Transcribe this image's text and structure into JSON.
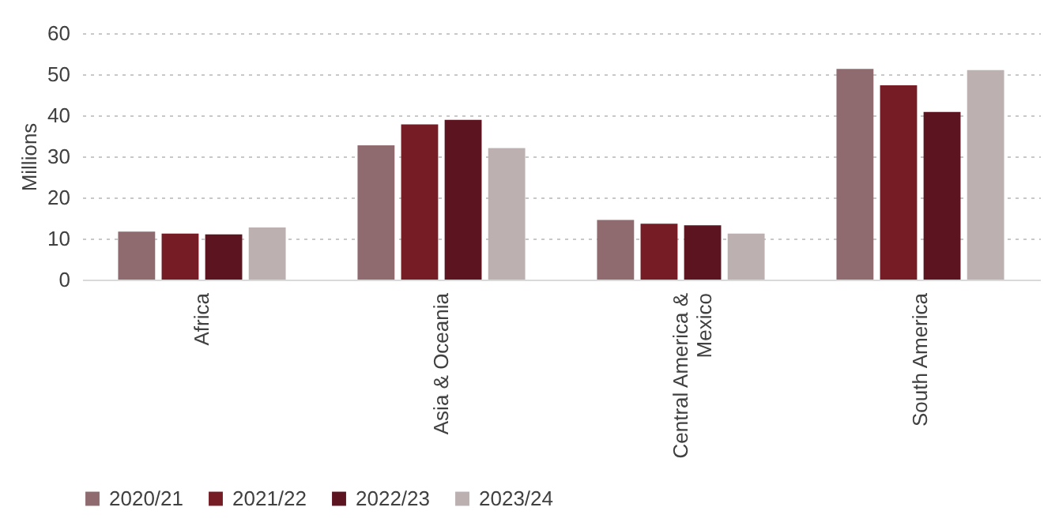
{
  "chart_data": {
    "type": "bar",
    "ylabel": "Millions",
    "categories": [
      "Africa",
      "Asia & Oceania",
      "Central America & Mexico",
      "South America"
    ],
    "series": [
      {
        "name": "2020/21",
        "color": "#8f6b70",
        "values": [
          11.7,
          32.7,
          14.5,
          51.3
        ]
      },
      {
        "name": "2021/22",
        "color": "#761c25",
        "values": [
          11.2,
          37.8,
          13.6,
          47.3
        ]
      },
      {
        "name": "2022/23",
        "color": "#5c1420",
        "values": [
          11.0,
          38.9,
          13.2,
          40.8
        ]
      },
      {
        "name": "2023/24",
        "color": "#bcb0b1",
        "values": [
          12.7,
          32.0,
          11.2,
          51.0
        ]
      }
    ],
    "ylim": [
      0,
      60
    ],
    "yticks": [
      0,
      10,
      20,
      30,
      40,
      50,
      60
    ],
    "grid": "y",
    "legend": "bottom"
  }
}
